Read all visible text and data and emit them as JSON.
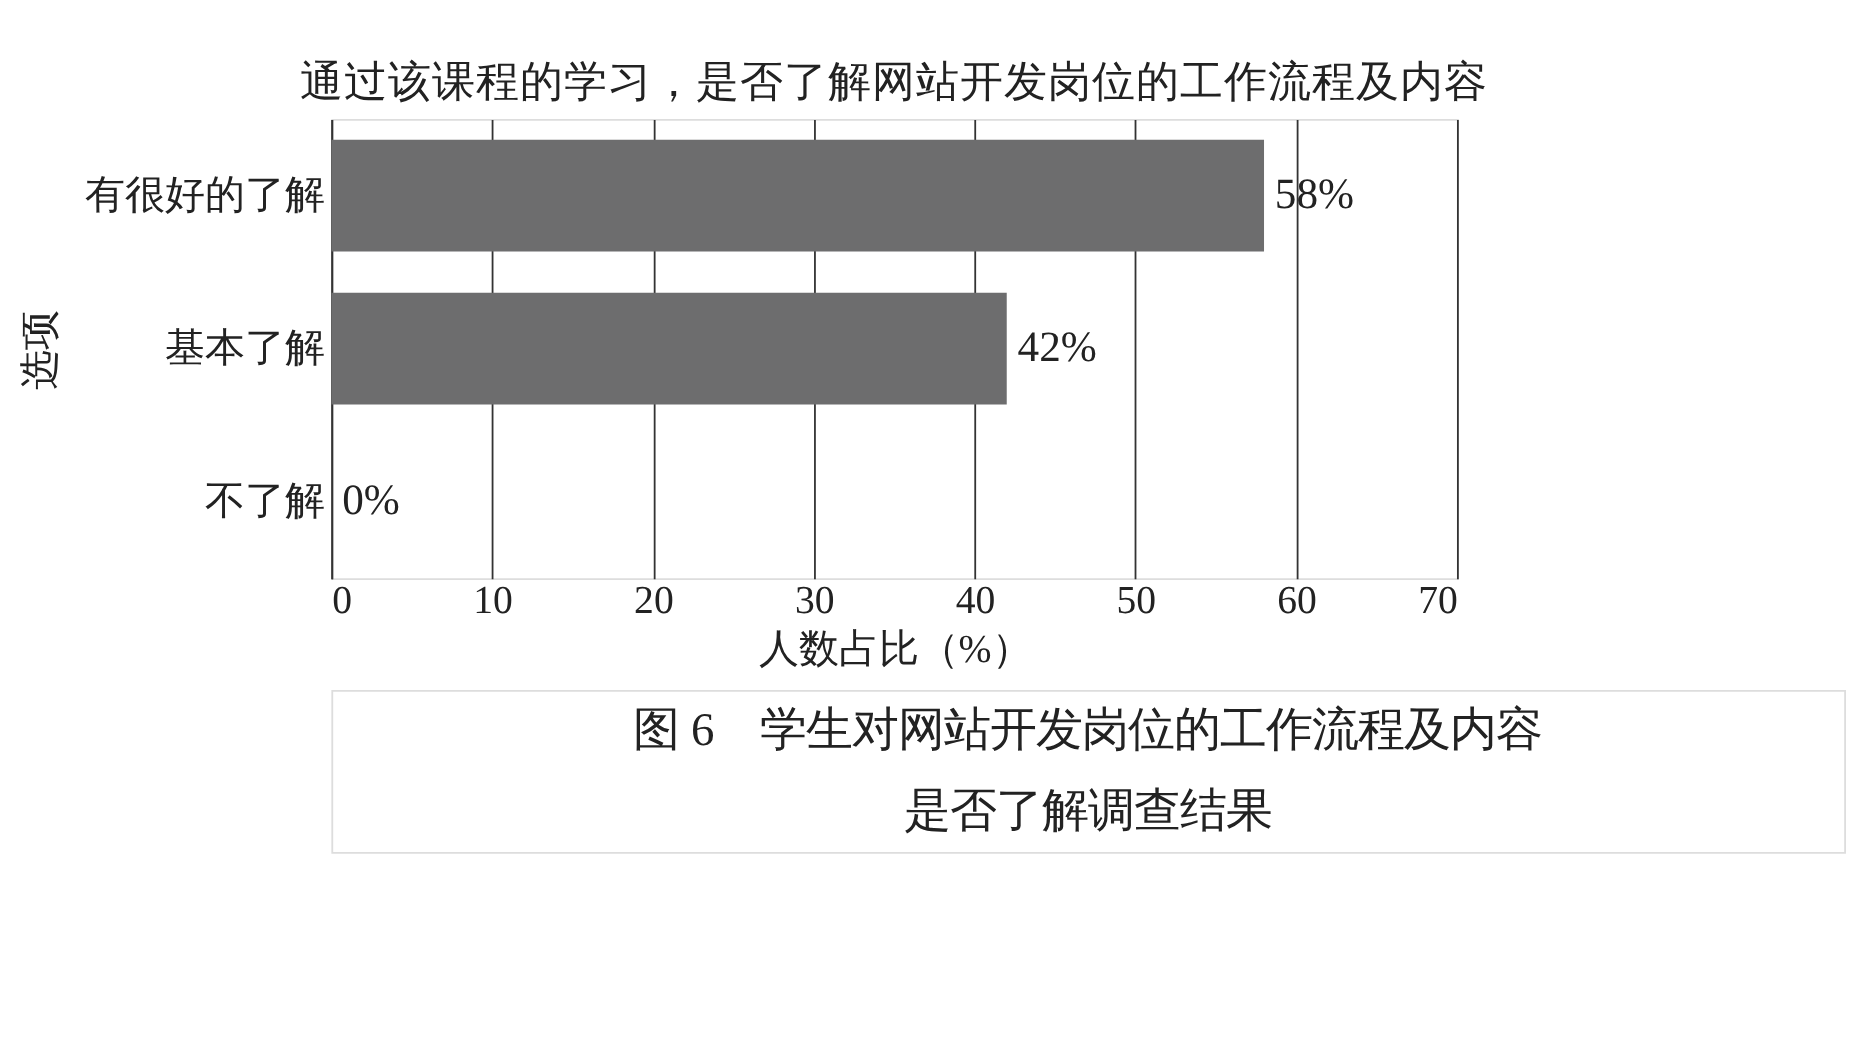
{
  "chart_data": {
    "type": "bar",
    "orientation": "horizontal",
    "title": "通过该课程的学习，是否了解网站开发岗位的工作流程及内容",
    "xlabel": "人数占比（%）",
    "ylabel": "选项",
    "categories": [
      "有很好的了解",
      "基本了解",
      "不了解"
    ],
    "values": [
      58,
      42,
      0
    ],
    "color": "#6d6d6e",
    "value_labels": [
      "58%",
      "42%",
      "0%"
    ],
    "xlim": [
      0,
      70
    ],
    "xticks": [
      0,
      10,
      20,
      30,
      40,
      50,
      60,
      70
    ],
    "grid": "x",
    "annotations": [
      "图 6　学生对网站开发岗位的工作流程及内容",
      "是否了解调查结果"
    ]
  }
}
